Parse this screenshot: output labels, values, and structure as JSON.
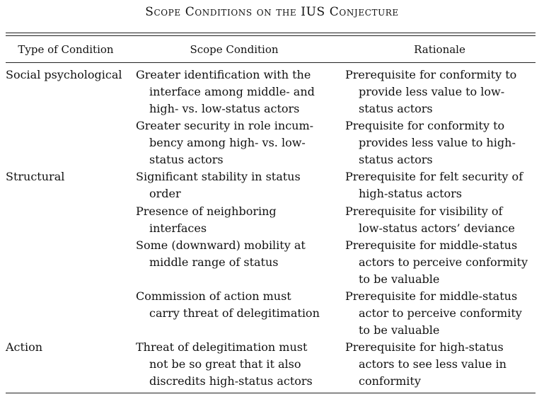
{
  "table": {
    "caption": "Scope Conditions on the IUS Conjecture",
    "headers": [
      "Type of Condition",
      "Scope Condition",
      "Rationale"
    ],
    "rows": [
      {
        "type": "Social psychological",
        "condition": [
          "Greater identification with the",
          "interface among middle- and",
          "high- vs. low-status actors"
        ],
        "rationale": [
          "Prerequisite for conformity to",
          "provide less value to low-",
          "status actors"
        ]
      },
      {
        "type": "",
        "condition": [
          "Greater security in role incum-",
          "bency among high- vs. low-",
          "status actors"
        ],
        "rationale": [
          "Prequisite for conformity to",
          "provides less value to high-",
          "status actors"
        ]
      },
      {
        "type": "Structural",
        "condition": [
          "Significant stability in status",
          "order"
        ],
        "rationale": [
          "Prerequisite for felt security of",
          "high-status actors"
        ]
      },
      {
        "type": "",
        "condition": [
          "Presence of neighboring",
          "interfaces"
        ],
        "rationale": [
          "Prerequisite for visibility of",
          "low-status actors’ deviance"
        ]
      },
      {
        "type": "",
        "condition": [
          "Some (downward) mobility at",
          "middle range of status"
        ],
        "rationale": [
          "Prerequisite for middle-status",
          "actors to perceive conformity",
          "to be valuable"
        ]
      },
      {
        "type": "",
        "condition": [
          "Commission of action must",
          "carry threat of delegitimation"
        ],
        "rationale": [
          "Prerequisite for middle-status",
          "actor to perceive conformity",
          "to be valuable"
        ]
      },
      {
        "type": "Action",
        "condition": [
          "Threat of delegitimation must",
          "not be so great that it also",
          "discredits high-status actors"
        ],
        "rationale": [
          "Prerequisite for high-status",
          "actors to see less value in",
          "conformity"
        ]
      }
    ]
  }
}
